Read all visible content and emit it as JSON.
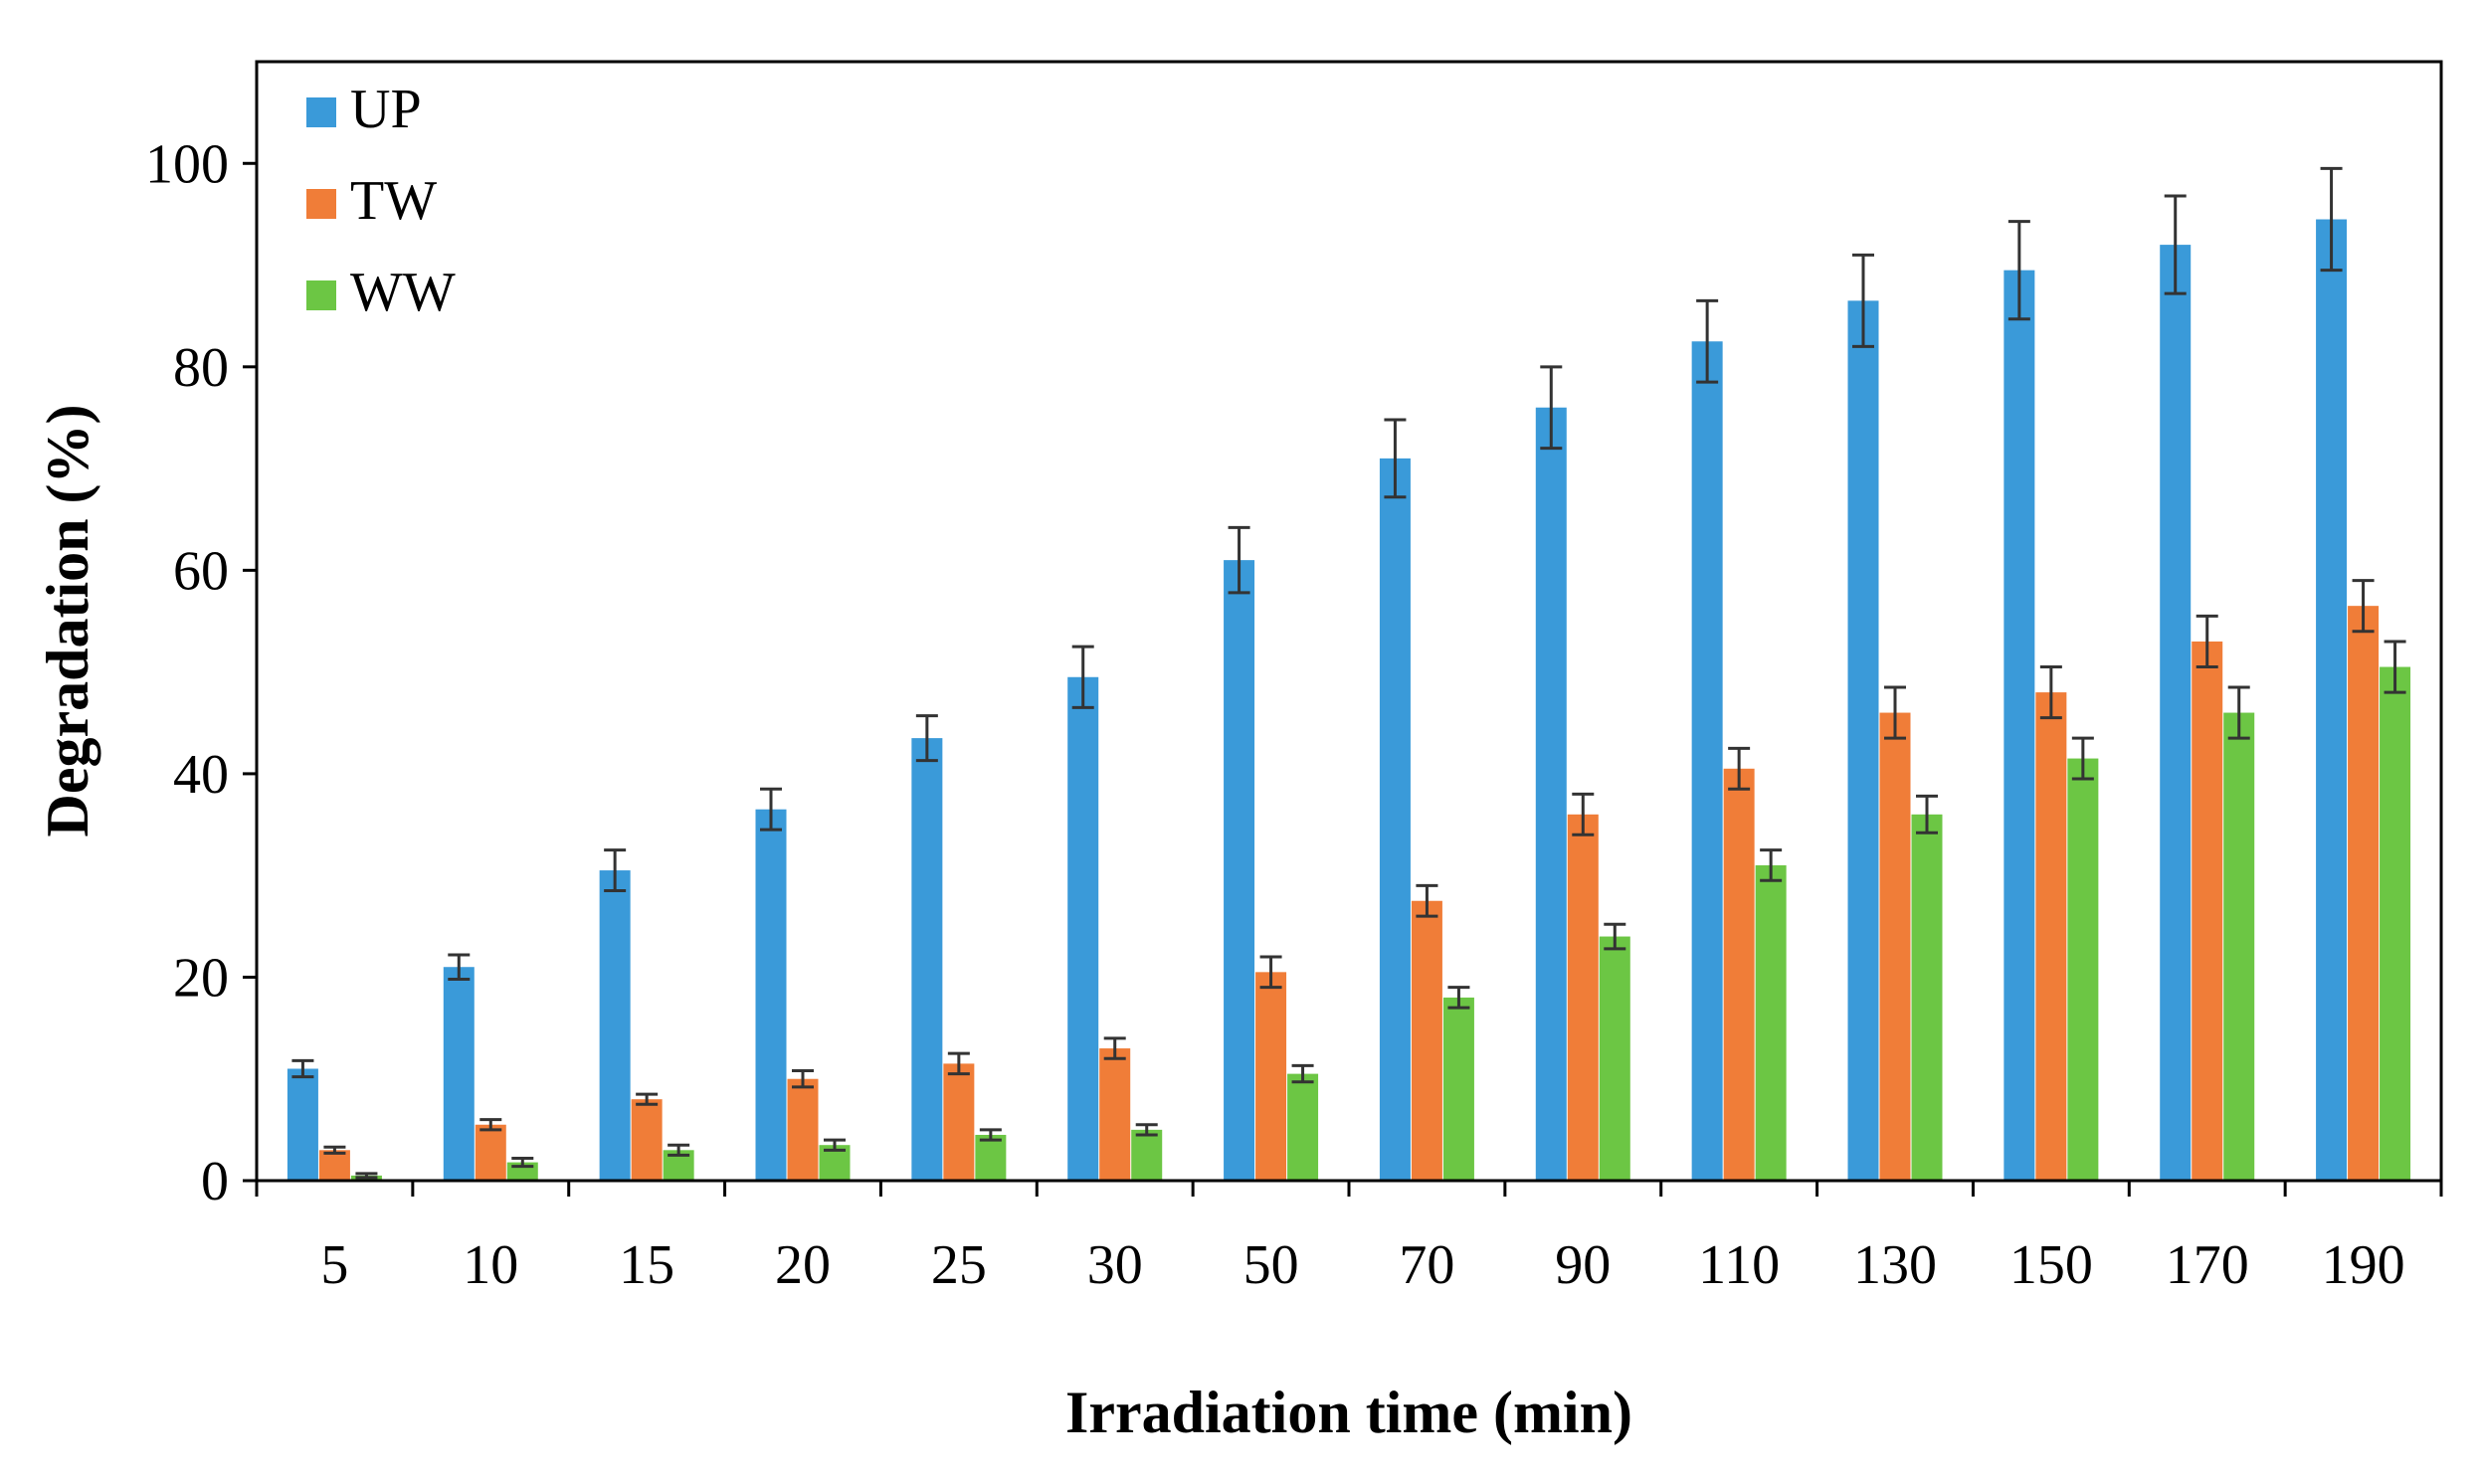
{
  "chart_data": {
    "type": "bar",
    "title": "",
    "xlabel": "Irradiation  time (min)",
    "ylabel": "Degradation (%)",
    "ylim": [
      0,
      110
    ],
    "yticks": [
      0,
      20,
      40,
      60,
      80,
      100
    ],
    "grid": false,
    "legend_position": "top-left",
    "categories": [
      "5",
      "10",
      "15",
      "20",
      "25",
      "30",
      "50",
      "70",
      "90",
      "110",
      "130",
      "150",
      "170",
      "190"
    ],
    "series": [
      {
        "name": "UP",
        "color": "#3a9ad9",
        "values": [
          11,
          21,
          30.5,
          36.5,
          43.5,
          49.5,
          61,
          71,
          76,
          82.5,
          86.5,
          89.5,
          92,
          94.5
        ],
        "errors": [
          0.8,
          1.2,
          2,
          2,
          2.2,
          3,
          3.2,
          3.8,
          4,
          4,
          4.5,
          4.8,
          4.8,
          5
        ]
      },
      {
        "name": "TW",
        "color": "#f07d38",
        "values": [
          3,
          5.5,
          8,
          10,
          11.5,
          13,
          20.5,
          27.5,
          36,
          40.5,
          46,
          48,
          53,
          56.5
        ],
        "errors": [
          0.3,
          0.5,
          0.5,
          0.8,
          1,
          1,
          1.5,
          1.5,
          2,
          2,
          2.5,
          2.5,
          2.5,
          2.5
        ]
      },
      {
        "name": "WW",
        "color": "#6cc644",
        "values": [
          0.5,
          1.8,
          3,
          3.5,
          4.5,
          5,
          10.5,
          18,
          24,
          31,
          36,
          41.5,
          46,
          50.5
        ],
        "errors": [
          0.2,
          0.4,
          0.5,
          0.5,
          0.5,
          0.5,
          0.8,
          1,
          1.2,
          1.5,
          1.8,
          2,
          2.5,
          2.5
        ]
      }
    ]
  }
}
